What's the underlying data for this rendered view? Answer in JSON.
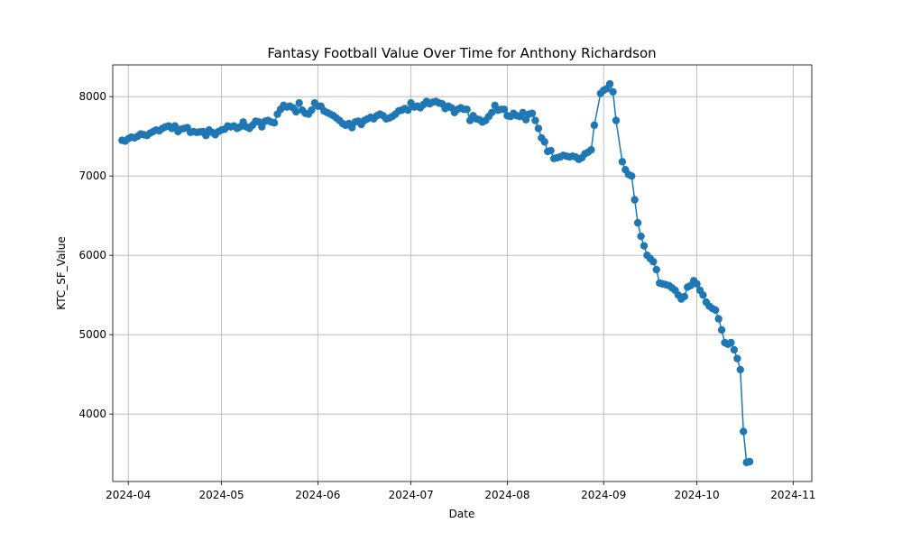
{
  "chart_data": {
    "type": "line",
    "title": "Fantasy Football Value Over Time for Anthony Richardson",
    "xlabel": "Date",
    "ylabel": "KTC_SF_Value",
    "ylim": [
      3150,
      8400
    ],
    "xlim_day": [
      -5,
      220
    ],
    "grid": true,
    "marker": "circle",
    "color": "#1f77b4",
    "x_ticks": [
      {
        "day": 0,
        "label": "2024-04"
      },
      {
        "day": 30,
        "label": "2024-05"
      },
      {
        "day": 61,
        "label": "2024-06"
      },
      {
        "day": 91,
        "label": "2024-07"
      },
      {
        "day": 122,
        "label": "2024-08"
      },
      {
        "day": 153,
        "label": "2024-09"
      },
      {
        "day": 183,
        "label": "2024-10"
      },
      {
        "day": 214,
        "label": "2024-11"
      }
    ],
    "y_ticks": [
      4000,
      5000,
      6000,
      7000,
      8000
    ],
    "series": [
      {
        "name": "KTC_SF_Value",
        "points": [
          [
            -2,
            7450
          ],
          [
            -1,
            7440
          ],
          [
            0,
            7470
          ],
          [
            1,
            7490
          ],
          [
            2,
            7480
          ],
          [
            3,
            7500
          ],
          [
            4,
            7530
          ],
          [
            5,
            7520
          ],
          [
            6,
            7510
          ],
          [
            7,
            7540
          ],
          [
            8,
            7560
          ],
          [
            9,
            7580
          ],
          [
            10,
            7570
          ],
          [
            11,
            7600
          ],
          [
            12,
            7620
          ],
          [
            13,
            7630
          ],
          [
            14,
            7600
          ],
          [
            15,
            7630
          ],
          [
            16,
            7560
          ],
          [
            17,
            7590
          ],
          [
            18,
            7600
          ],
          [
            19,
            7610
          ],
          [
            20,
            7550
          ],
          [
            21,
            7560
          ],
          [
            22,
            7550
          ],
          [
            23,
            7555
          ],
          [
            24,
            7560
          ],
          [
            25,
            7510
          ],
          [
            26,
            7580
          ],
          [
            27,
            7550
          ],
          [
            28,
            7520
          ],
          [
            29,
            7560
          ],
          [
            30,
            7580
          ],
          [
            31,
            7590
          ],
          [
            32,
            7630
          ],
          [
            33,
            7620
          ],
          [
            34,
            7630
          ],
          [
            35,
            7600
          ],
          [
            36,
            7620
          ],
          [
            37,
            7680
          ],
          [
            38,
            7620
          ],
          [
            39,
            7600
          ],
          [
            40,
            7640
          ],
          [
            41,
            7690
          ],
          [
            42,
            7680
          ],
          [
            43,
            7620
          ],
          [
            44,
            7690
          ],
          [
            45,
            7700
          ],
          [
            46,
            7680
          ],
          [
            47,
            7670
          ],
          [
            48,
            7780
          ],
          [
            49,
            7840
          ],
          [
            50,
            7890
          ],
          [
            51,
            7870
          ],
          [
            52,
            7880
          ],
          [
            53,
            7860
          ],
          [
            54,
            7810
          ],
          [
            55,
            7920
          ],
          [
            56,
            7830
          ],
          [
            57,
            7790
          ],
          [
            58,
            7780
          ],
          [
            59,
            7830
          ],
          [
            60,
            7920
          ],
          [
            61,
            7880
          ],
          [
            62,
            7880
          ],
          [
            63,
            7820
          ],
          [
            64,
            7800
          ],
          [
            65,
            7780
          ],
          [
            66,
            7760
          ],
          [
            67,
            7730
          ],
          [
            68,
            7700
          ],
          [
            69,
            7660
          ],
          [
            70,
            7640
          ],
          [
            71,
            7660
          ],
          [
            72,
            7610
          ],
          [
            73,
            7680
          ],
          [
            74,
            7690
          ],
          [
            75,
            7650
          ],
          [
            76,
            7700
          ],
          [
            77,
            7720
          ],
          [
            78,
            7740
          ],
          [
            79,
            7720
          ],
          [
            80,
            7760
          ],
          [
            81,
            7780
          ],
          [
            82,
            7760
          ],
          [
            83,
            7720
          ],
          [
            84,
            7730
          ],
          [
            85,
            7750
          ],
          [
            86,
            7780
          ],
          [
            87,
            7820
          ],
          [
            88,
            7830
          ],
          [
            89,
            7850
          ],
          [
            90,
            7830
          ],
          [
            91,
            7920
          ],
          [
            92,
            7870
          ],
          [
            93,
            7880
          ],
          [
            94,
            7860
          ],
          [
            95,
            7900
          ],
          [
            96,
            7940
          ],
          [
            97,
            7910
          ],
          [
            98,
            7930
          ],
          [
            99,
            7940
          ],
          [
            100,
            7920
          ],
          [
            101,
            7910
          ],
          [
            102,
            7850
          ],
          [
            103,
            7880
          ],
          [
            104,
            7860
          ],
          [
            105,
            7800
          ],
          [
            106,
            7840
          ],
          [
            107,
            7860
          ],
          [
            108,
            7840
          ],
          [
            109,
            7840
          ],
          [
            110,
            7700
          ],
          [
            111,
            7760
          ],
          [
            112,
            7720
          ],
          [
            113,
            7710
          ],
          [
            114,
            7680
          ],
          [
            115,
            7700
          ],
          [
            116,
            7750
          ],
          [
            117,
            7800
          ],
          [
            118,
            7890
          ],
          [
            119,
            7830
          ],
          [
            120,
            7840
          ],
          [
            121,
            7840
          ],
          [
            122,
            7760
          ],
          [
            123,
            7750
          ],
          [
            124,
            7790
          ],
          [
            125,
            7760
          ],
          [
            126,
            7750
          ],
          [
            127,
            7800
          ],
          [
            128,
            7710
          ],
          [
            129,
            7780
          ],
          [
            130,
            7790
          ],
          [
            131,
            7700
          ],
          [
            132,
            7600
          ],
          [
            133,
            7480
          ],
          [
            134,
            7430
          ],
          [
            135,
            7310
          ],
          [
            136,
            7320
          ],
          [
            137,
            7220
          ],
          [
            138,
            7230
          ],
          [
            139,
            7240
          ],
          [
            140,
            7260
          ],
          [
            141,
            7250
          ],
          [
            142,
            7240
          ],
          [
            143,
            7250
          ],
          [
            144,
            7240
          ],
          [
            145,
            7210
          ],
          [
            146,
            7230
          ],
          [
            147,
            7280
          ],
          [
            148,
            7300
          ],
          [
            149,
            7330
          ],
          [
            150,
            7640
          ],
          [
            152,
            8040
          ],
          [
            153,
            8080
          ],
          [
            154,
            8100
          ],
          [
            155,
            8160
          ],
          [
            156,
            8060
          ],
          [
            157,
            7700
          ],
          [
            159,
            7180
          ],
          [
            160,
            7080
          ],
          [
            161,
            7020
          ],
          [
            162,
            7000
          ],
          [
            163,
            6700
          ],
          [
            164,
            6410
          ],
          [
            165,
            6240
          ],
          [
            166,
            6120
          ],
          [
            167,
            6000
          ],
          [
            168,
            5960
          ],
          [
            169,
            5920
          ],
          [
            170,
            5820
          ],
          [
            171,
            5650
          ],
          [
            172,
            5640
          ],
          [
            173,
            5630
          ],
          [
            174,
            5620
          ],
          [
            175,
            5590
          ],
          [
            176,
            5560
          ],
          [
            177,
            5500
          ],
          [
            178,
            5450
          ],
          [
            179,
            5480
          ],
          [
            180,
            5600
          ],
          [
            181,
            5620
          ],
          [
            182,
            5680
          ],
          [
            183,
            5640
          ],
          [
            184,
            5560
          ],
          [
            185,
            5500
          ],
          [
            186,
            5410
          ],
          [
            187,
            5360
          ],
          [
            188,
            5330
          ],
          [
            189,
            5310
          ],
          [
            190,
            5200
          ],
          [
            191,
            5060
          ],
          [
            192,
            4900
          ],
          [
            193,
            4880
          ],
          [
            194,
            4900
          ],
          [
            195,
            4810
          ],
          [
            196,
            4700
          ],
          [
            197,
            4560
          ],
          [
            198,
            3780
          ],
          [
            199,
            3390
          ],
          [
            200,
            3400
          ]
        ]
      }
    ]
  }
}
